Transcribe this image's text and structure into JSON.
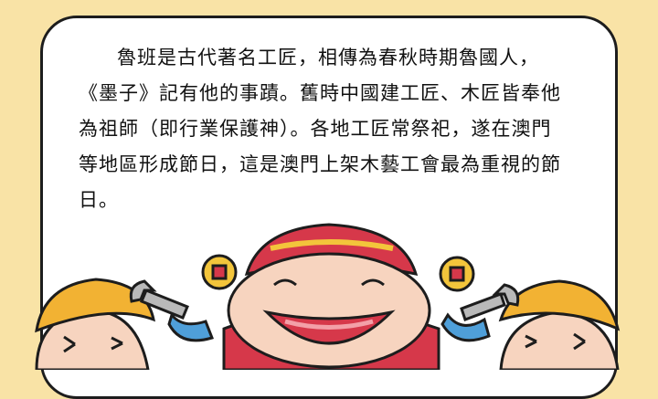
{
  "article": {
    "lines": [
      "魯班是古代著名工匠，相傳為春秋時期魯國人，",
      "《墨子》記有他的事蹟。舊時中國建工匠、木匠皆奉他",
      "為祖師（即行業保護神）。各地工匠常祭祀，遂在澳門",
      "等地區形成節日，這是澳門上架木藝工會最為重視的節",
      "日。"
    ]
  },
  "colors": {
    "background": "#f9e3a6",
    "card": "#ffffff",
    "outline": "#1d1d1d",
    "helmet": "#f2b233",
    "hat_red": "#d6384a",
    "hat_gold": "#f3c53b",
    "skin": "#f7d4bf",
    "wrench": "#b9b9b9",
    "arm_blue": "#4f9fd9"
  }
}
